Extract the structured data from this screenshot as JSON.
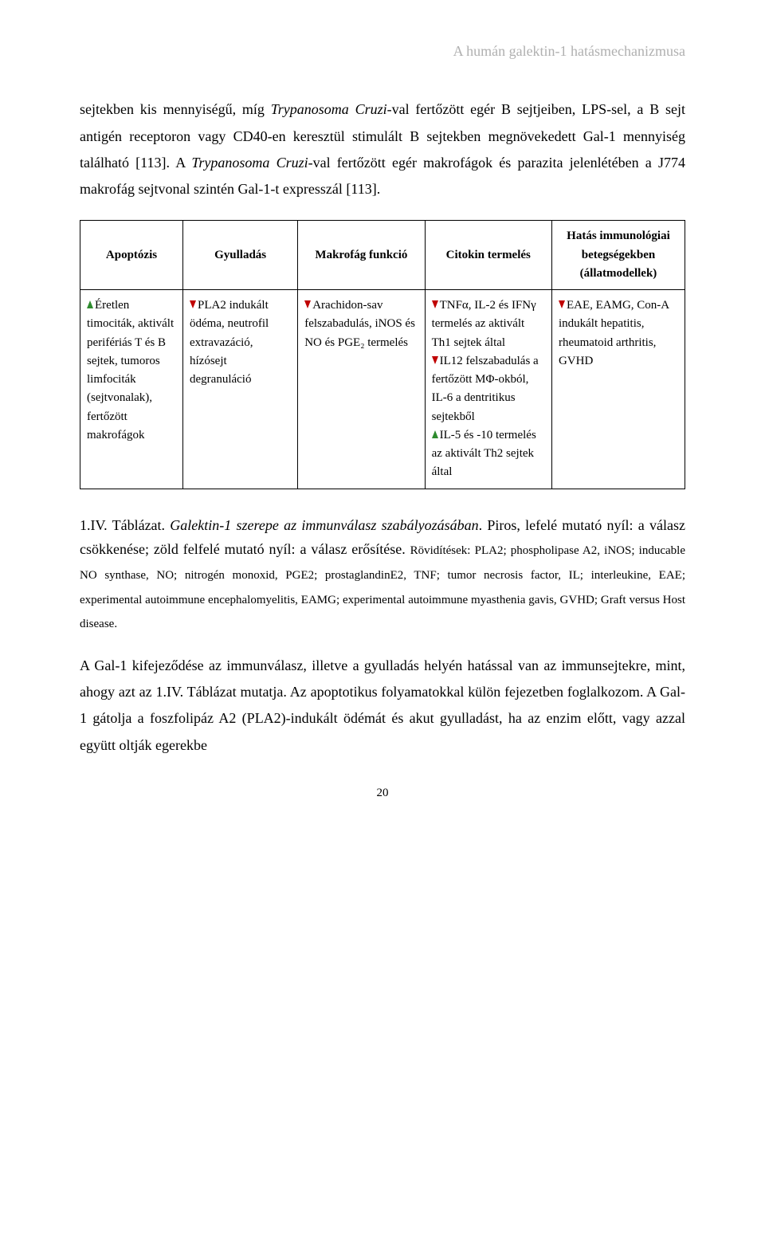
{
  "header": "A humán galektin-1 hatásmechanizmusa",
  "p1_part1": "sejtekben kis mennyiségű, míg ",
  "p1_it1": "Trypanosoma Cruzi",
  "p1_part2": "-val fertőzött egér B sejtjeiben, LPS-sel, a B sejt antigén receptoron vagy CD40-en keresztül stimulált B sejtekben megnövekedett Gal-1 mennyiség található [113]. A ",
  "p1_it2": "Trypanosoma Cruzi",
  "p1_part3": "-val fertőzött egér makrofágok és parazita jelenlétében a J774 makrofág sejtvonal szintén Gal-1-t expresszál [113].",
  "table": {
    "headers": {
      "c1": "Apoptózis",
      "c2": "Gyulladás",
      "c3": "Makrofág funkció",
      "c4": "Citokin termelés",
      "c5": "Hatás immunológiai betegségekben (állatmodellek)"
    },
    "row": {
      "c1": "Éretlen timociták, aktivált perifériás T és B sejtek, tumoros limfociták (sejtvonalak), fertőzött makrofágok",
      "c2": "PLA2 indukált ödéma, neutrofil extravazáció, hízósejt degranuláció",
      "c3": "Arachidon-sav felszabadulás, iNOS és NO és PGE₂ termelés",
      "c4a": "TNFα, IL-2 és IFNγ termelés az aktivált Th1 sejtek által",
      "c4b": "IL12 felszabadulás a fertőzött MΦ-okból, IL-6 a dentritikus sejtekből",
      "c4c": "IL-5 és -10 termelés az aktivált Th2 sejtek által",
      "c5": "EAE, EAMG, Con-A indukált hepatitis, rheumatoid arthritis, GVHD"
    }
  },
  "caption_lead": "1.IV. Táblázat. ",
  "caption_italic": "Galektin-1 szerepe az immunválasz szabályozásában",
  "caption_main": ". Piros, lefelé mutató nyíl: a válasz csökkenése; zöld felfelé mutató nyíl: a válasz erősítése. ",
  "caption_small": "Rövidítések: PLA2; phospholipase A2, iNOS; inducable NO synthase, NO; nitrogén monoxid, PGE2; prostaglandinE2, TNF; tumor necrosis factor, IL; interleukine, EAE; experimental autoimmune encephalomyelitis, EAMG; experimental autoimmune myasthenia gavis, GVHD; Graft versus Host disease.",
  "p2": "A Gal-1 kifejeződése az immunválasz, illetve a gyulladás helyén hatással van az immunsejtekre, mint, ahogy azt az 1.IV. Táblázat mutatja. Az apoptotikus folyamatokkal külön fejezetben foglalkozom. A Gal-1 gátolja a foszfolipáz A2 (PLA2)-indukált ödémát és akut gyulladást, ha az enzim előtt, vagy azzal együtt oltják egerekbe",
  "page_number": "20",
  "arrow_colors": {
    "up": "#2e8b2e",
    "down": "#c00000"
  }
}
